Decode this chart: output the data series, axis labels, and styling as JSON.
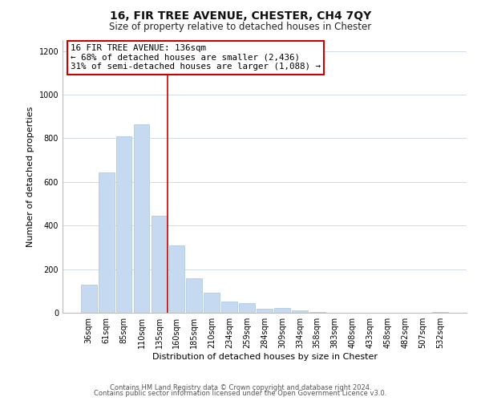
{
  "title": "16, FIR TREE AVENUE, CHESTER, CH4 7QY",
  "subtitle": "Size of property relative to detached houses in Chester",
  "xlabel": "Distribution of detached houses by size in Chester",
  "ylabel": "Number of detached properties",
  "bar_labels": [
    "36sqm",
    "61sqm",
    "85sqm",
    "110sqm",
    "135sqm",
    "160sqm",
    "185sqm",
    "210sqm",
    "234sqm",
    "259sqm",
    "284sqm",
    "309sqm",
    "334sqm",
    "358sqm",
    "383sqm",
    "408sqm",
    "433sqm",
    "458sqm",
    "482sqm",
    "507sqm",
    "532sqm"
  ],
  "bar_values": [
    130,
    645,
    810,
    865,
    445,
    310,
    158,
    92,
    52,
    43,
    18,
    22,
    10,
    5,
    0,
    0,
    0,
    0,
    0,
    0,
    5
  ],
  "bar_color": "#c5d9f1",
  "bar_edgecolor": "#a8c4e0",
  "ylim": [
    0,
    1250
  ],
  "yticks": [
    0,
    200,
    400,
    600,
    800,
    1000,
    1200
  ],
  "annotation_title": "16 FIR TREE AVENUE: 136sqm",
  "annotation_line1": "← 68% of detached houses are smaller (2,436)",
  "annotation_line2": "31% of semi-detached houses are larger (1,088) →",
  "annotation_box_facecolor": "#ffffff",
  "annotation_box_edgecolor": "#cc0000",
  "footer_line1": "Contains HM Land Registry data © Crown copyright and database right 2024.",
  "footer_line2": "Contains public sector information licensed under the Open Government Licence v3.0.",
  "background_color": "#ffffff",
  "grid_color": "#d0dce8",
  "redline_x": 4.5,
  "title_fontsize": 10,
  "subtitle_fontsize": 8.5,
  "annotation_fontsize": 7.8,
  "ylabel_fontsize": 8,
  "xlabel_fontsize": 8,
  "tick_fontsize": 7,
  "footer_fontsize": 6
}
